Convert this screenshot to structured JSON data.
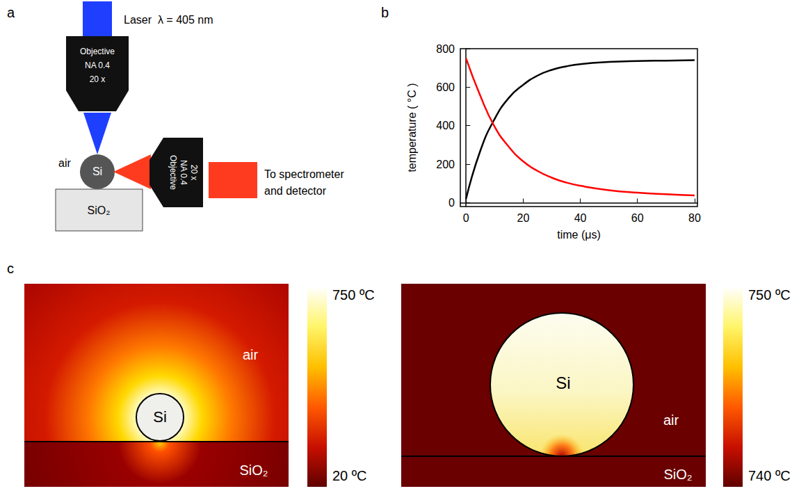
{
  "panel_a": {
    "letter": "a",
    "laser": "Laser  λ = 405 nm",
    "objective_top": [
      "Objective",
      "NA 0.4",
      "20 x"
    ],
    "objective_side": [
      "Objective",
      "NA 0.4",
      "20 x"
    ],
    "particle": "Si",
    "medium": "air",
    "substrate": "SiO₂",
    "detector": [
      "To spectrometer",
      "and detector"
    ]
  },
  "panel_b": {
    "letter": "b"
  },
  "chart_data": {
    "type": "line",
    "xlabel": "time (μs)",
    "ylabel": "temperature ( °C )",
    "x": [
      0,
      5,
      10,
      15,
      20,
      25,
      30,
      35,
      40,
      50,
      60,
      70,
      80
    ],
    "series": [
      {
        "color": "#000000",
        "values": [
          20,
          270,
          435,
          545,
          612,
          660,
          690,
          708,
          720,
          731,
          736,
          738,
          740
        ]
      },
      {
        "color": "#ff0000",
        "values": [
          750,
          555,
          395,
          290,
          215,
          165,
          130,
          105,
          88,
          65,
          52,
          44,
          38
        ]
      }
    ],
    "xlim": [
      -2,
      81
    ],
    "xticks": [
      0,
      20,
      40,
      60,
      80
    ],
    "ylim": [
      -20,
      800
    ],
    "yticks": [
      0,
      200,
      400,
      600,
      800
    ],
    "grid": false
  },
  "panel_c": {
    "letter": "c",
    "maps": [
      {
        "particle": "Si",
        "medium": "air",
        "substrate": "SiO₂",
        "colorbar": {
          "range": [
            20,
            750
          ],
          "ticks": [
            {
              "value": 750,
              "label": "750 ºC"
            },
            {
              "value": 20,
              "label": "20 ºC"
            }
          ]
        }
      },
      {
        "particle": "Si",
        "medium": "air",
        "substrate": "SiO₂",
        "colorbar": {
          "range": [
            740,
            750
          ],
          "ticks": [
            {
              "value": 750,
              "label": "750 ºC"
            },
            {
              "value": 740,
              "label": "740 ºC"
            }
          ]
        }
      }
    ]
  }
}
